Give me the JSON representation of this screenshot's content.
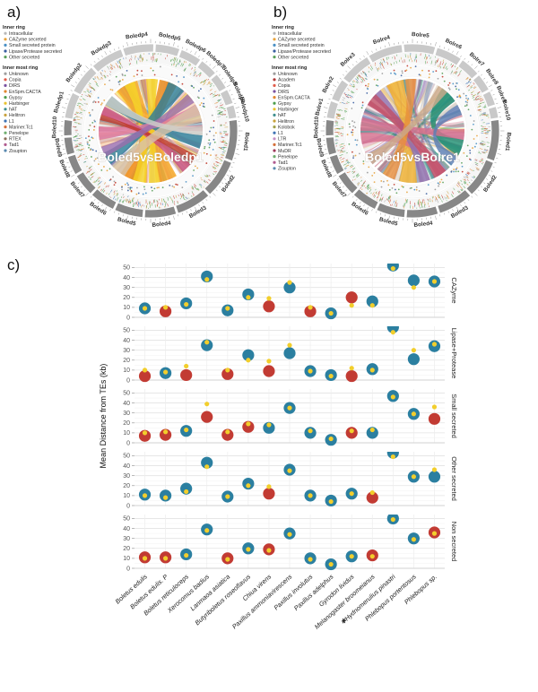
{
  "panels": {
    "a": {
      "label": "a)",
      "center_label": "Boled5vsBoledp1",
      "legend": {
        "sections": [
          {
            "title": "Inner ring",
            "items": [
              {
                "label": "Intracellular",
                "color": "#b8b8b8"
              },
              {
                "label": "CAZyme secreted",
                "color": "#e8a33d"
              },
              {
                "label": "Small secreted protein",
                "color": "#4a90c4"
              },
              {
                "label": "Lipase/Protease secreted",
                "color": "#3b5fa0"
              },
              {
                "label": "Other secreted",
                "color": "#5aa05a"
              }
            ]
          },
          {
            "title": "Inner most ring",
            "items": [
              {
                "label": "Unknown",
                "color": "#9e9e9e"
              },
              {
                "label": "Copia",
                "color": "#e05c4b"
              },
              {
                "label": "DIRS",
                "color": "#7a52a1"
              },
              {
                "label": "EnSpm.CACTA",
                "color": "#e0872f"
              },
              {
                "label": "Gypsy",
                "color": "#4d9e4d"
              },
              {
                "label": "Harbinger",
                "color": "#e8c22e"
              },
              {
                "label": "hAT",
                "color": "#3e8e8e"
              },
              {
                "label": "Helitron",
                "color": "#c8a23c"
              },
              {
                "label": "L1",
                "color": "#3f74b5"
              },
              {
                "label": "Mariner.Tc1",
                "color": "#d4703a"
              },
              {
                "label": "Penelope",
                "color": "#6fae6f"
              },
              {
                "label": "RTEX",
                "color": "#8a6f5a"
              },
              {
                "label": "Tad1",
                "color": "#b05a8f"
              },
              {
                "label": "Zisupton",
                "color": "#5a8ab0"
              }
            ]
          }
        ]
      },
      "genome_dark": {
        "color": "#878787",
        "segments": [
          "Boled1",
          "Boled2",
          "Boled3",
          "Boled4",
          "Boled5",
          "Boled6",
          "Boled7",
          "Boled8",
          "Boled9",
          "Boled10"
        ],
        "weights": [
          26,
          24,
          22,
          20,
          18,
          16,
          14,
          12,
          11,
          10
        ]
      },
      "genome_light": {
        "color": "#c9c9c9",
        "segments": [
          "Boledp1",
          "Boledp2",
          "Boledp3",
          "Boledp4",
          "Boledp5",
          "Boledp6",
          "Boledp7",
          "Boledp8",
          "Boledp9",
          "Boledp10"
        ],
        "weights": [
          16,
          18,
          20,
          19,
          15,
          13,
          11,
          10,
          9,
          8
        ]
      },
      "major_ribbons": [
        {
          "from": [
            320,
            345
          ],
          "to": [
            150,
            170
          ],
          "color": "#f5a623"
        },
        {
          "from": [
            10,
            30
          ],
          "to": [
            195,
            215
          ],
          "color": "#ef8a17"
        },
        {
          "from": [
            330,
            342
          ],
          "to": [
            185,
            200
          ],
          "color": "#f5d327"
        },
        {
          "from": [
            355,
            368
          ],
          "to": [
            170,
            182
          ],
          "color": "#f5d327"
        },
        {
          "from": [
            20,
            40
          ],
          "to": [
            230,
            245
          ],
          "color": "#2d7e99"
        },
        {
          "from": [
            95,
            110
          ],
          "to": [
            300,
            312
          ],
          "color": "#2d7e99"
        },
        {
          "from": [
            260,
            275
          ],
          "to": [
            60,
            72
          ],
          "color": "#e27ba5"
        },
        {
          "from": [
            130,
            142
          ],
          "to": [
            288,
            298
          ],
          "color": "#c94f7c"
        },
        {
          "from": [
            118,
            128
          ],
          "to": [
            282,
            288
          ],
          "color": "#c0392b"
        },
        {
          "from": [
            240,
            252
          ],
          "to": [
            45,
            57
          ],
          "color": "#9b6fae"
        },
        {
          "from": [
            60,
            80
          ],
          "to": [
            210,
            228
          ],
          "color": "#d9c3a8"
        },
        {
          "from": [
            300,
            312
          ],
          "to": [
            85,
            95
          ],
          "color": "#cfcfc9"
        }
      ],
      "minor_palette": [
        "#f5a623",
        "#f5d327",
        "#e27ba5",
        "#2d7e99",
        "#9b6fae",
        "#c0392b",
        "#d9c3a8",
        "#cccccc",
        "#e88a3c"
      ]
    },
    "b": {
      "label": "b)",
      "center_label": "Boled5vsBolre1",
      "legend": {
        "sections": [
          {
            "title": "Inner ring",
            "items": [
              {
                "label": "Intracellular",
                "color": "#b8b8b8"
              },
              {
                "label": "CAZyme secreted",
                "color": "#e8a33d"
              },
              {
                "label": "Small secreted protein",
                "color": "#4a90c4"
              },
              {
                "label": "Lipase/Protease secreted",
                "color": "#3b5fa0"
              },
              {
                "label": "Other secreted",
                "color": "#5aa05a"
              }
            ]
          },
          {
            "title": "Inner most ring",
            "items": [
              {
                "label": "Unknown",
                "color": "#9e9e9e"
              },
              {
                "label": "Academ",
                "color": "#b03a3a"
              },
              {
                "label": "Copia",
                "color": "#e05c4b"
              },
              {
                "label": "DIRS",
                "color": "#7a52a1"
              },
              {
                "label": "EnSpm.CACTA",
                "color": "#e0872f"
              },
              {
                "label": "Gypsy",
                "color": "#4d9e4d"
              },
              {
                "label": "Harbinger",
                "color": "#e8c22e"
              },
              {
                "label": "hAT",
                "color": "#3e8e8e"
              },
              {
                "label": "Helitron",
                "color": "#c8a23c"
              },
              {
                "label": "Kolobok",
                "color": "#a0a04a"
              },
              {
                "label": "L1",
                "color": "#3f74b5"
              },
              {
                "label": "LTR",
                "color": "#c48fc4"
              },
              {
                "label": "Mariner.Tc1",
                "color": "#d4703a"
              },
              {
                "label": "MuDR",
                "color": "#9e3a5a"
              },
              {
                "label": "Penelope",
                "color": "#6fae6f"
              },
              {
                "label": "Tad1",
                "color": "#b05a8f"
              },
              {
                "label": "Zisupton",
                "color": "#5a8ab0"
              }
            ]
          }
        ]
      },
      "genome_dark": {
        "color": "#878787",
        "segments": [
          "Boled1",
          "Boled2",
          "Boled3",
          "Boled4",
          "Boled5",
          "Boled6",
          "Boled7",
          "Boled8",
          "Boled9",
          "Boled10"
        ],
        "weights": [
          26,
          24,
          22,
          20,
          18,
          16,
          14,
          12,
          11,
          10
        ]
      },
      "genome_light": {
        "color": "#c9c9c9",
        "segments": [
          "Bolre1",
          "Bolre2",
          "Bolre3",
          "Bolre4",
          "Bolre5",
          "Bolre6",
          "Bolre7",
          "Bolre8",
          "Bolre9",
          "Bolre10"
        ],
        "weights": [
          12,
          15,
          22,
          24,
          22,
          18,
          14,
          12,
          10,
          8
        ]
      },
      "major_ribbons": [
        {
          "from": [
            35,
            55
          ],
          "to": [
            100,
            118
          ],
          "color": "#1f8f72"
        },
        {
          "from": [
            330,
            350
          ],
          "to": [
            175,
            195
          ],
          "color": "#eeb02f"
        },
        {
          "from": [
            270,
            285
          ],
          "to": [
            88,
            100
          ],
          "color": "#d66f8d"
        },
        {
          "from": [
            255,
            268
          ],
          "to": [
            140,
            152
          ],
          "color": "#d66f8d"
        },
        {
          "from": [
            310,
            322
          ],
          "to": [
            160,
            172
          ],
          "color": "#8e6fae"
        },
        {
          "from": [
            60,
            72
          ],
          "to": [
            120,
            132
          ],
          "color": "#5b7fb5"
        },
        {
          "from": [
            140,
            155
          ],
          "to": [
            300,
            315
          ],
          "color": "#bf5069"
        },
        {
          "from": [
            352,
            364
          ],
          "to": [
            200,
            215
          ],
          "color": "#e8903c"
        },
        {
          "from": [
            230,
            242
          ],
          "to": [
            30,
            42
          ],
          "color": "#caa88a"
        }
      ],
      "minor_palette": [
        "#d66f8d",
        "#eeb02f",
        "#1f8f72",
        "#8e6fae",
        "#5b7fb5",
        "#bf5069",
        "#d9c3a8",
        "#c9c9c9"
      ]
    },
    "c": {
      "label": "c)",
      "chart_data": {
        "type": "scatter",
        "title": "",
        "ylabel": "Mean Distance from TEs (kb)",
        "yticks": [
          0,
          10,
          20,
          30,
          40,
          50
        ],
        "ylim": [
          0,
          54
        ],
        "grid": true,
        "point_colors": {
          "B": "#2b7fa0",
          "R": "#c23b33",
          "te": "#f2ce2c"
        },
        "categories": [
          "Boletus edulis",
          "Boletus edulis. P",
          "Boletus reticuloceps",
          "Xerocomus badius",
          "Lanmaoa asiatica",
          "Butyriboletus roseoflavus",
          "Chiua virens",
          "Paxillus ammoniavirescens",
          "Paxillus involutus",
          "Paxillus adelphus",
          "Gyrodon lividus",
          "Melanogaster broomeianus",
          "✱Hydnomerulius pinastri",
          "Phlebopus portentosus",
          "Phlebopus sp."
        ],
        "facets": [
          {
            "label": "CAZyme",
            "main": [
              9,
              6,
              14,
              41,
              7,
              23,
              11,
              30,
              6,
              4,
              20,
              16,
              52,
              37,
              36
            ],
            "main_color": [
              "B",
              "R",
              "B",
              "B",
              "B",
              "B",
              "R",
              "B",
              "R",
              "B",
              "R",
              "B",
              "B",
              "B",
              "B"
            ],
            "te": [
              9,
              10,
              13,
              38,
              9,
              20,
              19,
              35,
              10,
              4,
              12,
              12,
              49,
              30,
              36
            ]
          },
          {
            "label": "Lipase+Protease",
            "main": [
              4,
              7,
              5,
              35,
              6,
              25,
              9,
              27,
              9,
              5,
              4,
              11,
              53,
              21,
              34
            ],
            "main_color": [
              "R",
              "B",
              "R",
              "B",
              "R",
              "B",
              "R",
              "B",
              "B",
              "B",
              "R",
              "B",
              "B",
              "B",
              "B"
            ],
            "te": [
              10,
              8,
              14,
              38,
              10,
              20,
              19,
              35,
              9,
              4,
              12,
              10,
              48,
              30,
              36
            ]
          },
          {
            "label": "Small secreted",
            "main": [
              7,
              8,
              12,
              26,
              8,
              16,
              15,
              35,
              10,
              3,
              10,
              10,
              47,
              29,
              24
            ],
            "main_color": [
              "R",
              "R",
              "B",
              "R",
              "R",
              "R",
              "B",
              "B",
              "B",
              "B",
              "R",
              "B",
              "B",
              "B",
              "R"
            ],
            "te": [
              10,
              11,
              13,
              39,
              11,
              19,
              18,
              35,
              12,
              4,
              12,
              13,
              46,
              29,
              36
            ]
          },
          {
            "label": "Other secreted",
            "main": [
              11,
              10,
              17,
              43,
              9,
              22,
              12,
              36,
              10,
              5,
              12,
              8,
              53,
              29,
              29
            ],
            "main_color": [
              "B",
              "B",
              "B",
              "B",
              "B",
              "B",
              "R",
              "B",
              "B",
              "B",
              "B",
              "R",
              "B",
              "B",
              "B"
            ],
            "te": [
              10,
              8,
              14,
              39,
              9,
              20,
              19,
              35,
              10,
              4,
              12,
              13,
              49,
              29,
              36
            ]
          },
          {
            "label": "Non secreted",
            "main": [
              11,
              11,
              14,
              39,
              10,
              20,
              19,
              35,
              10,
              4,
              12,
              13,
              50,
              30,
              36
            ],
            "main_color": [
              "R",
              "R",
              "B",
              "B",
              "R",
              "B",
              "R",
              "B",
              "B",
              "B",
              "B",
              "R",
              "B",
              "B",
              "R"
            ],
            "te": [
              10,
              10,
              13,
              38,
              9,
              19,
              18,
              34,
              9,
              4,
              12,
              12,
              49,
              29,
              35
            ]
          }
        ]
      }
    }
  }
}
